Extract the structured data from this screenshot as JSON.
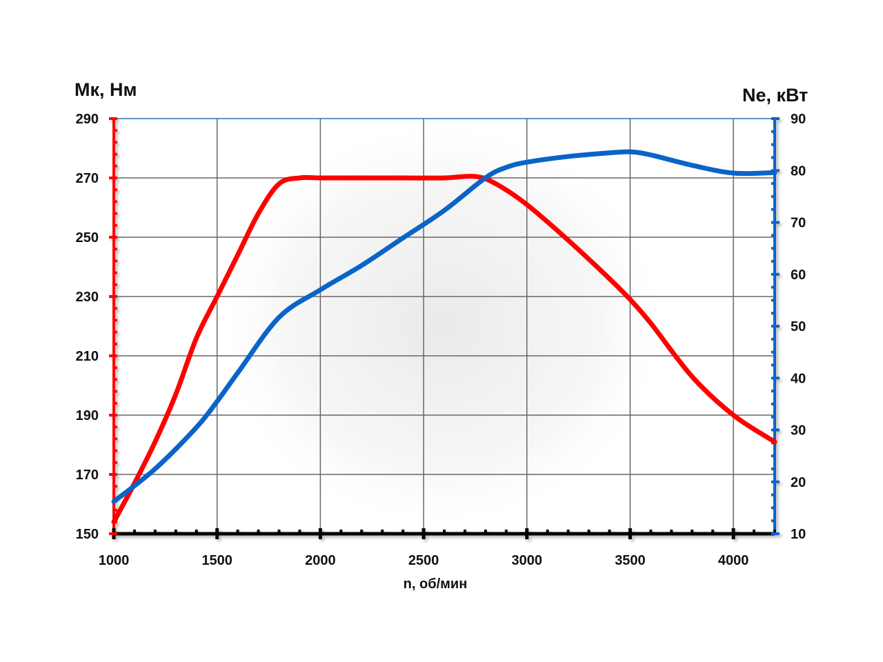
{
  "chart_data": {
    "type": "line",
    "title": "",
    "xlabel": "n, об/мин",
    "ylabel_left": "Мк, Нм",
    "ylabel_right": "Ne, кВт",
    "xlim": [
      1000,
      4200
    ],
    "ylim_left": [
      150,
      290
    ],
    "ylim_right": [
      10,
      90
    ],
    "x_ticks": [
      1000,
      1500,
      2000,
      2500,
      3000,
      3500,
      4000
    ],
    "y_left_ticks": [
      150,
      170,
      190,
      210,
      230,
      250,
      270,
      290
    ],
    "y_right_ticks": [
      10,
      20,
      30,
      40,
      50,
      60,
      70,
      80,
      90
    ],
    "grid": true,
    "colors": {
      "torque": "#ff0000",
      "power": "#0a64c8",
      "grid": "#666666",
      "top_border": "#2e6db4"
    },
    "series": [
      {
        "name": "Мк",
        "axis": "left",
        "color": "#ff0000",
        "x": [
          1000,
          1100,
          1200,
          1300,
          1400,
          1500,
          1600,
          1700,
          1800,
          1900,
          2000,
          2200,
          2400,
          2600,
          2750,
          2850,
          3000,
          3200,
          3400,
          3500,
          3600,
          3800,
          4000,
          4200
        ],
        "y": [
          154,
          167,
          181,
          197,
          216,
          230,
          244,
          258,
          268,
          270,
          270,
          270,
          270,
          270,
          270.5,
          268,
          261,
          249,
          236,
          229,
          221,
          203,
          190,
          181
        ]
      },
      {
        "name": "Ne",
        "axis": "right",
        "color": "#0a64c8",
        "x": [
          1000,
          1200,
          1400,
          1500,
          1600,
          1800,
          2000,
          2200,
          2400,
          2600,
          2800,
          2900,
          3000,
          3200,
          3400,
          3500,
          3600,
          3800,
          4000,
          4200
        ],
        "y": [
          16.2,
          22.5,
          30.5,
          35.5,
          41,
          51.7,
          57,
          61.7,
          67,
          72.3,
          78.6,
          80.6,
          81.6,
          82.7,
          83.4,
          83.6,
          83,
          81,
          79.5,
          79.6
        ]
      }
    ]
  }
}
